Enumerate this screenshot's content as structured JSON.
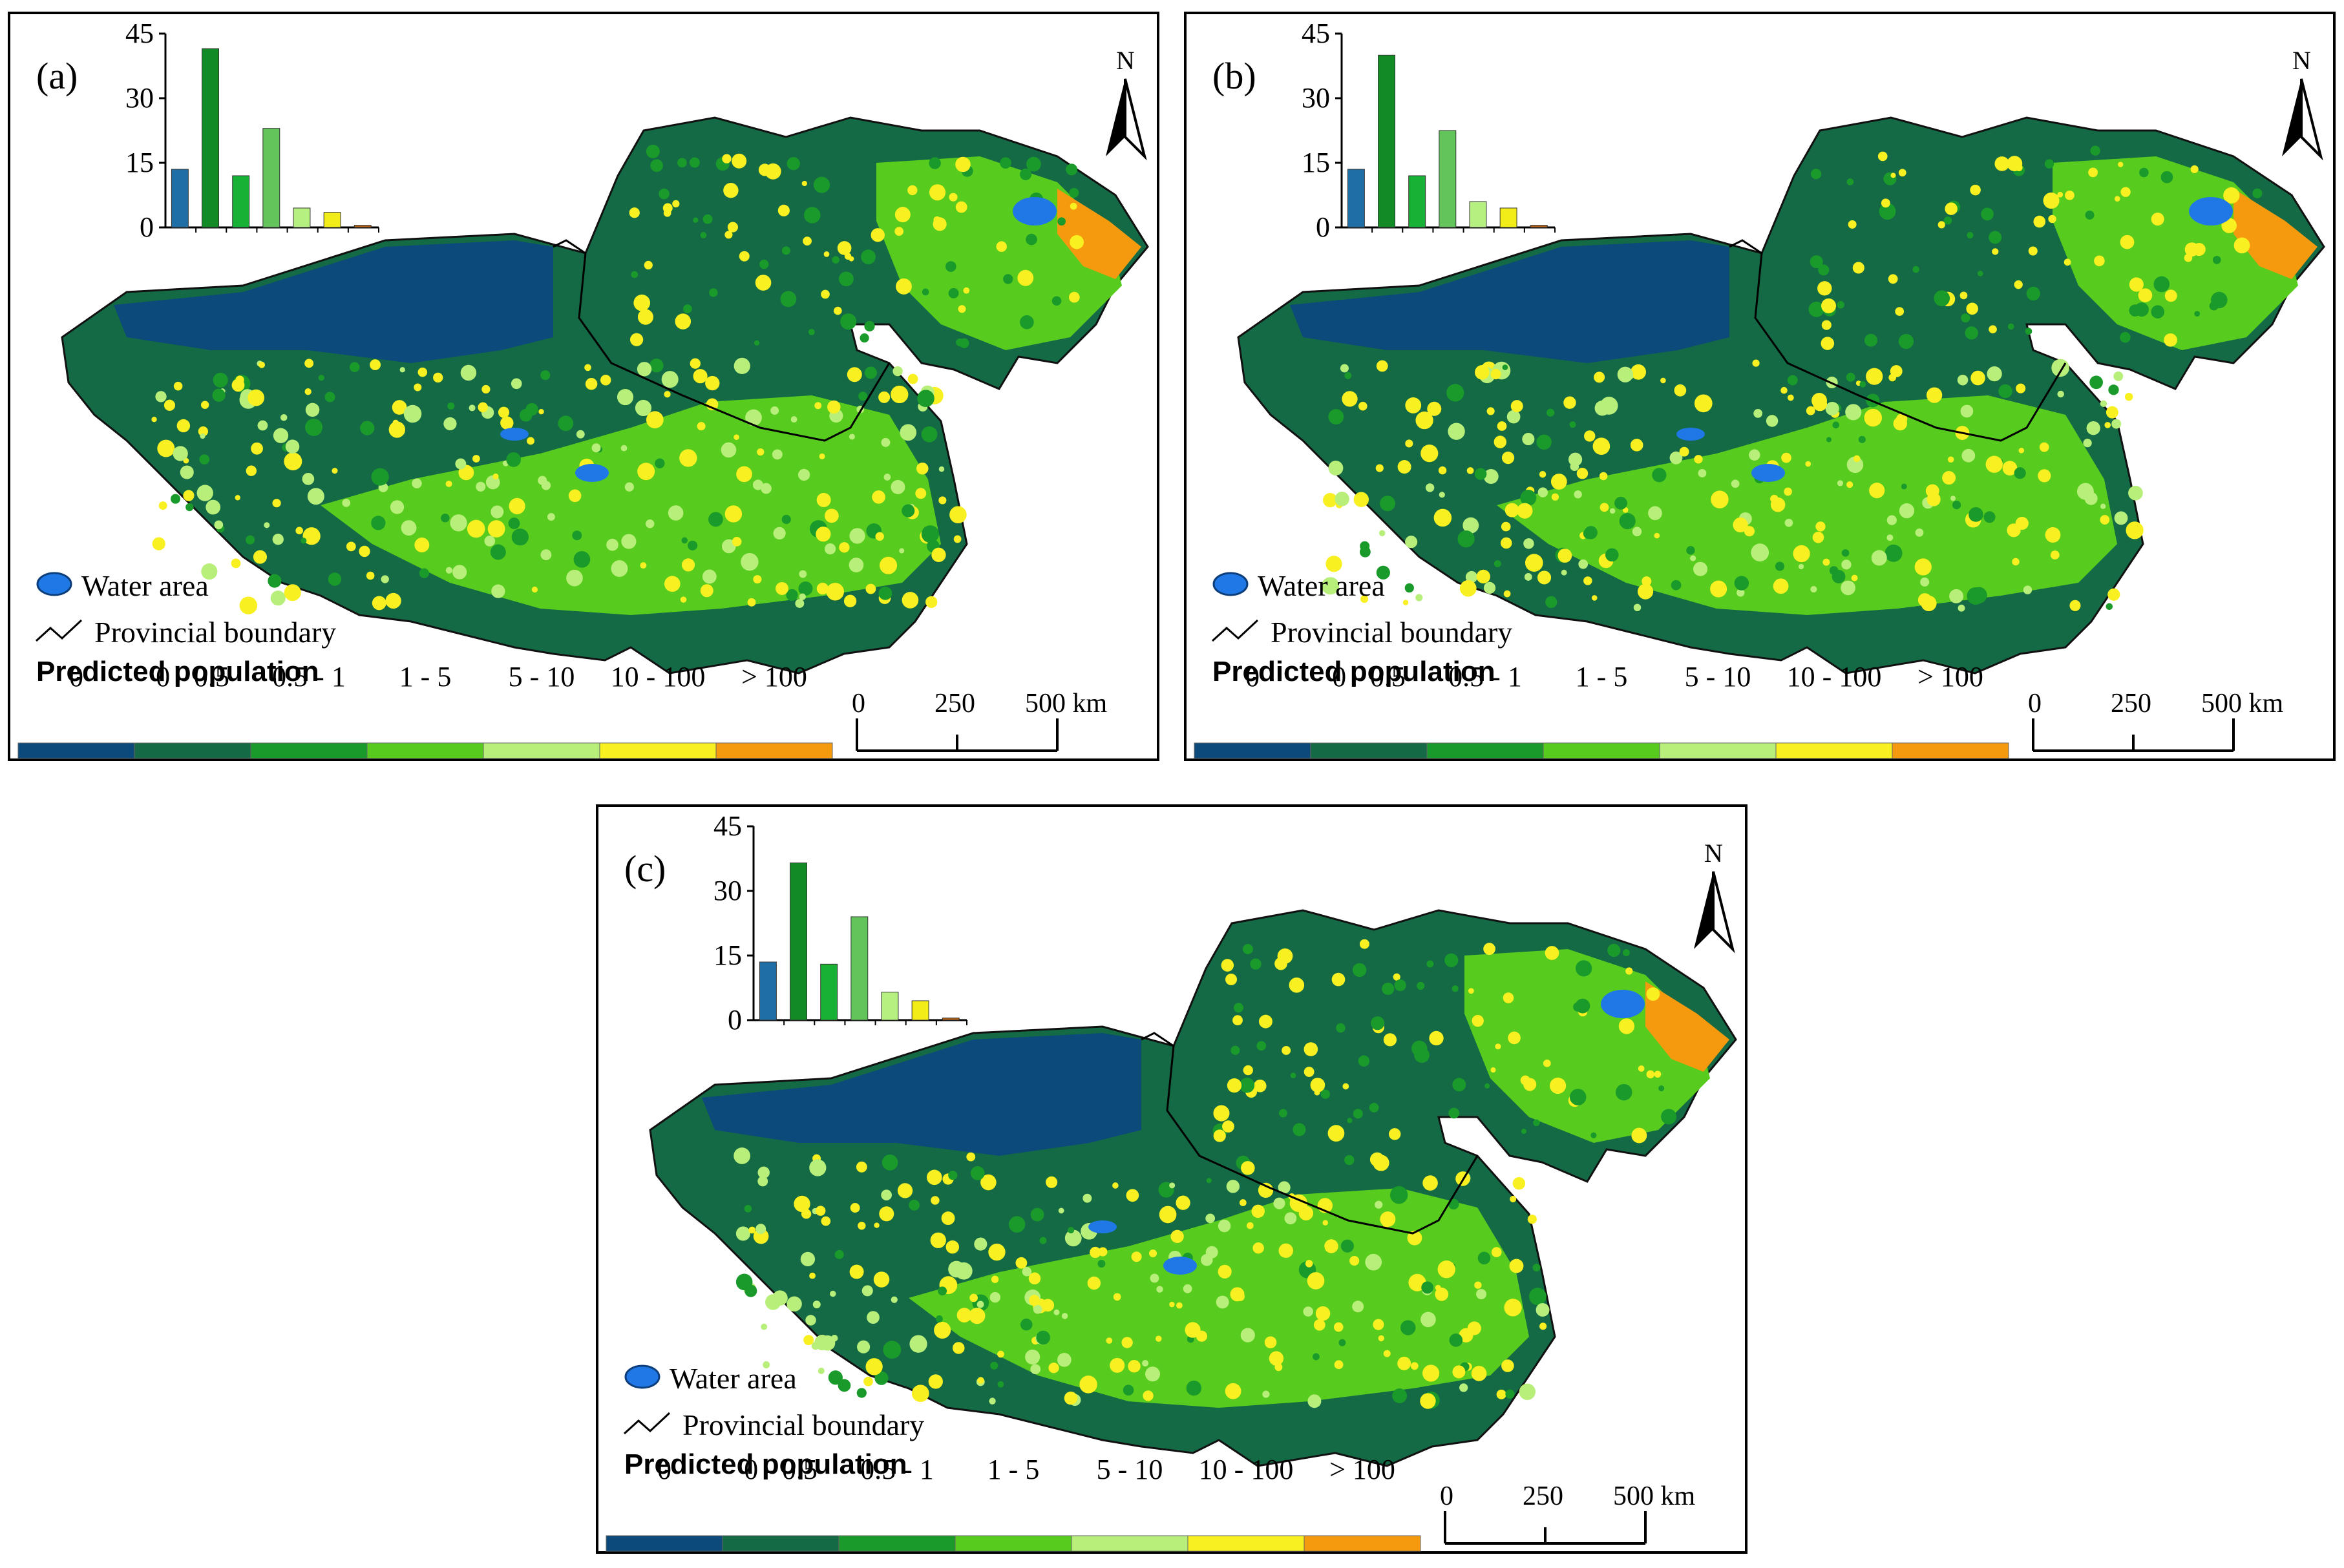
{
  "panels": [
    {
      "label": "(a)",
      "histogram": {
        "y_ticks": [
          "45",
          "30",
          "15",
          "0"
        ],
        "ylim": [
          0,
          45
        ],
        "values": [
          13.5,
          41.5,
          12,
          23,
          4.5,
          3.5,
          0.5
        ]
      },
      "north": "N",
      "legend": {
        "water": "Water area",
        "boundary": "Provincial boundary",
        "title": "Predicted  population"
      },
      "scale": {
        "labels": [
          "0",
          "250",
          "500 km"
        ]
      }
    },
    {
      "label": "(b)",
      "histogram": {
        "y_ticks": [
          "45",
          "30",
          "15",
          "0"
        ],
        "ylim": [
          0,
          45
        ],
        "values": [
          13.5,
          40,
          12,
          22.5,
          6,
          4.5,
          0.5
        ]
      },
      "north": "N",
      "legend": {
        "water": "Water area",
        "boundary": "Provincial boundary",
        "title": "Predicted  population"
      },
      "scale": {
        "labels": [
          "0",
          "250",
          "500 km"
        ]
      }
    },
    {
      "label": "(c)",
      "histogram": {
        "y_ticks": [
          "45",
          "30",
          "15",
          "0"
        ],
        "ylim": [
          0,
          45
        ],
        "values": [
          13.5,
          36.5,
          13,
          24,
          6.5,
          4.5,
          0.5
        ]
      },
      "north": "N",
      "legend": {
        "water": "Water area",
        "boundary": "Provincial boundary",
        "title": "Predicted  population"
      },
      "scale": {
        "labels": [
          "0",
          "250",
          "500 km"
        ]
      }
    }
  ],
  "classes": [
    {
      "label": "0",
      "color": "#0b4a7a"
    },
    {
      "label": "0 - 0.5",
      "color": "#146a45"
    },
    {
      "label": "0.5 - 1",
      "color": "#1a9a2a"
    },
    {
      "label": "1 - 5",
      "color": "#58cc1e"
    },
    {
      "label": "5 - 10",
      "color": "#b8ee7a"
    },
    {
      "label": "10 - 100",
      "color": "#f8f020"
    },
    {
      "label": "> 100",
      "color": "#f59a0e"
    }
  ],
  "bar_colors": [
    "#1f6fa6",
    "#128a26",
    "#19b036",
    "#62c45a",
    "#b6f080",
    "#f2ec18",
    "#b06018"
  ],
  "water_color": "#1f78e6"
}
